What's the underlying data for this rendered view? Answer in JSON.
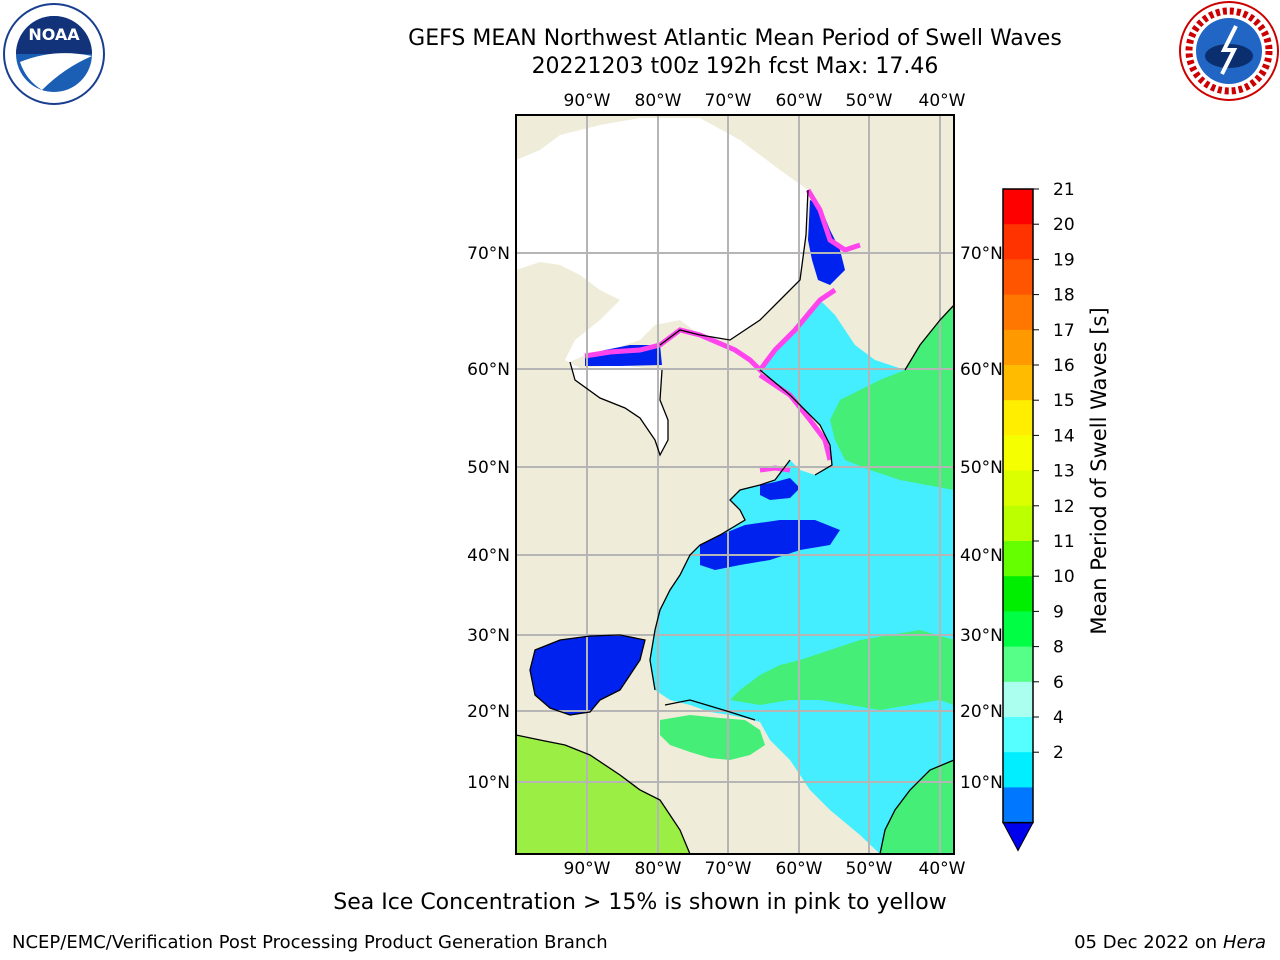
{
  "title_line1": "GEFS MEAN Northwest Atlantic Mean Period of Swell Waves",
  "title_line2": "20221203 t00z 192h fcst   Max: 17.46",
  "lon_labels": [
    "90°W",
    "80°W",
    "70°W",
    "60°W",
    "50°W",
    "40°W"
  ],
  "lat_labels": [
    "70°N",
    "60°N",
    "50°N",
    "40°N",
    "30°N",
    "20°N",
    "10°N"
  ],
  "colorbar": {
    "label": "Mean Period of Swell Waves [s]",
    "ticks": [
      "21",
      "20",
      "19",
      "18",
      "17",
      "16",
      "15",
      "14",
      "13",
      "12",
      "11",
      "10",
      "9",
      "8",
      "6",
      "4",
      "2"
    ],
    "colors": [
      "#ff0000",
      "#ff3300",
      "#ff5500",
      "#ff7700",
      "#ff9900",
      "#ffbb00",
      "#ffee00",
      "#f5ff00",
      "#dcff00",
      "#bbff00",
      "#66ff00",
      "#00ee00",
      "#00ff44",
      "#55ff88",
      "#aaffee",
      "#55ffff",
      "#00eeff",
      "#0077ff"
    ],
    "arrow_color": "#0000ee"
  },
  "colors": {
    "land": "#efecd9",
    "ice_land": "#ffffff",
    "ocean_main": "#44eeff",
    "ocean_green": "#44ee77",
    "ocean_deep": "#0022ee",
    "ice_edge": "#ff44ee",
    "grid": "#b5b5b5"
  },
  "ice_note": "Sea Ice Concentration > 15% is shown in pink to yellow",
  "footer_left": "NCEP/EMC/Verification Post Processing Product Generation Branch",
  "footer_date": "05 Dec 2022 on",
  "footer_machine": "Hera",
  "logos": {
    "left": "NOAA",
    "right": "NATIONAL WEATHER SERVICE"
  }
}
